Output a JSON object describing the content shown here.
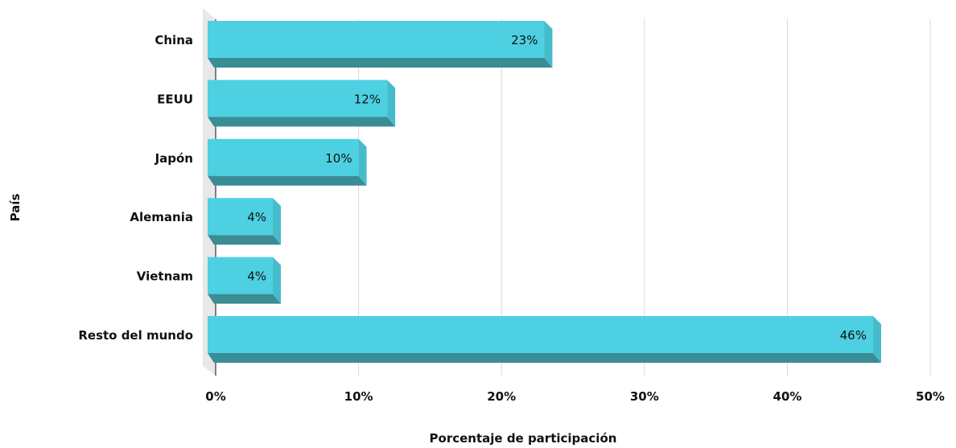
{
  "chart_data": {
    "type": "bar",
    "orientation": "horizontal",
    "categories": [
      "China",
      "EEUU",
      "Japón",
      "Alemania",
      "Vietnam",
      "Resto del mundo"
    ],
    "values": [
      23,
      12,
      10,
      4,
      4,
      46
    ],
    "data_labels": [
      "23%",
      "12%",
      "10%",
      "4%",
      "4%",
      "46%"
    ],
    "xlabel": "Porcentaje de participación",
    "ylabel": "País",
    "xlim": [
      0,
      50
    ],
    "x_ticks": [
      {
        "value": 0,
        "label": "0%"
      },
      {
        "value": 10,
        "label": "10%"
      },
      {
        "value": 20,
        "label": "20%"
      },
      {
        "value": 30,
        "label": "30%"
      },
      {
        "value": 40,
        "label": "40%"
      },
      {
        "value": 50,
        "label": "50%"
      }
    ],
    "grid": true,
    "legend": "none",
    "colors": {
      "bar_front": "#4dd0e1",
      "bar_bottom": "#3a8c95",
      "bar_side": "#45bccb",
      "gridline": "#d8d8d8",
      "axis_wall": "#e8e8e8"
    }
  }
}
